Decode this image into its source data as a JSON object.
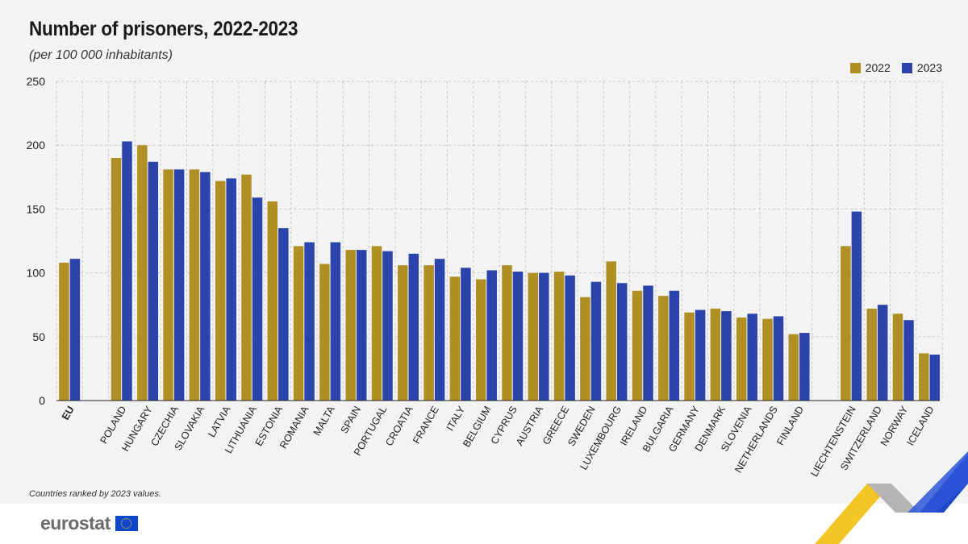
{
  "title": "Number of prisoners, 2022-2023",
  "subtitle": "(per 100 000 inhabitants)",
  "note": "Countries ranked by 2023 values.",
  "brand": "eurostat",
  "colors": {
    "s2022": "#b09025",
    "s2023": "#2a44ab",
    "grid": "#c8c8c8"
  },
  "chart_data": {
    "type": "bar",
    "title": "Number of prisoners, 2022-2023",
    "ylabel": "(per 100 000 inhabitants)",
    "xlabel": "",
    "ylim": [
      0,
      250
    ],
    "yticks": [
      0,
      50,
      100,
      150,
      200,
      250
    ],
    "grid": true,
    "legend_position": "top-right",
    "groups": [
      [
        "EU"
      ],
      [
        "POLAND",
        "HUNGARY",
        "CZECHIA",
        "SLOVAKIA",
        "LATVIA",
        "LITHUANIA",
        "ESTONIA",
        "ROMANIA",
        "MALTA",
        "SPAIN",
        "PORTUGAL",
        "CROATIA",
        "FRANCE",
        "ITALY",
        "BELGIUM",
        "CYPRUS",
        "AUSTRIA",
        "GREECE",
        "SWEDEN",
        "LUXEMBOURG",
        "IRELAND",
        "BULGARIA",
        "GERMANY",
        "DENMARK",
        "SLOVENIA",
        "NETHERLANDS",
        "FINLAND"
      ],
      [
        "LIECHTENSTEIN",
        "SWITZERLAND",
        "NORWAY",
        "ICELAND"
      ]
    ],
    "categories": [
      "EU",
      "POLAND",
      "HUNGARY",
      "CZECHIA",
      "SLOVAKIA",
      "LATVIA",
      "LITHUANIA",
      "ESTONIA",
      "ROMANIA",
      "MALTA",
      "SPAIN",
      "PORTUGAL",
      "CROATIA",
      "FRANCE",
      "ITALY",
      "BELGIUM",
      "CYPRUS",
      "AUSTRIA",
      "GREECE",
      "SWEDEN",
      "LUXEMBOURG",
      "IRELAND",
      "BULGARIA",
      "GERMANY",
      "DENMARK",
      "SLOVENIA",
      "NETHERLANDS",
      "FINLAND",
      "LIECHTENSTEIN",
      "SWITZERLAND",
      "NORWAY",
      "ICELAND"
    ],
    "series": [
      {
        "name": "2022",
        "values": [
          108,
          190,
          200,
          181,
          181,
          172,
          177,
          156,
          121,
          107,
          118,
          121,
          106,
          106,
          97,
          95,
          106,
          100,
          101,
          81,
          109,
          86,
          82,
          69,
          72,
          65,
          64,
          52,
          121,
          72,
          68,
          37
        ]
      },
      {
        "name": "2023",
        "values": [
          111,
          203,
          187,
          181,
          179,
          174,
          159,
          135,
          124,
          124,
          118,
          117,
          115,
          111,
          104,
          102,
          101,
          100,
          98,
          93,
          92,
          90,
          86,
          71,
          70,
          68,
          66,
          53,
          148,
          75,
          63,
          36
        ]
      }
    ]
  }
}
